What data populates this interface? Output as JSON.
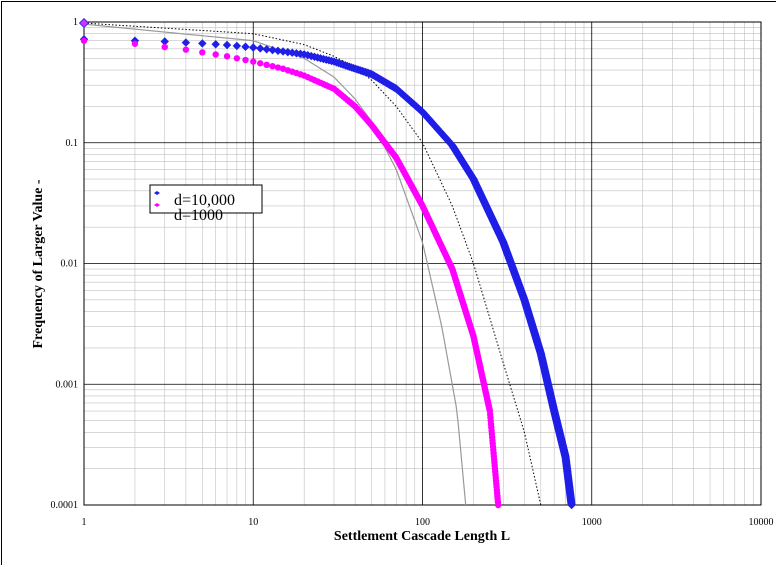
{
  "chart_data": {
    "type": "scatter",
    "title": "",
    "xlabel": "Settlement Cascade Length L",
    "ylabel": "Frequency of Larger Value    -",
    "x_scale": "log",
    "y_scale": "log",
    "xlim": [
      1,
      10000
    ],
    "ylim": [
      0.0001,
      1
    ],
    "x_tick_labels": [
      "1",
      "10",
      "100",
      "1000",
      "10000"
    ],
    "y_tick_labels": [
      "0.0001",
      "0.001",
      "0.01",
      "0.1",
      "1"
    ],
    "x_ticks": [
      1,
      10,
      100,
      1000,
      10000
    ],
    "y_ticks": [
      0.0001,
      0.001,
      0.01,
      0.1,
      1
    ],
    "grid": true,
    "legend_position": "center-left",
    "series": [
      {
        "name": "d=10,000",
        "color": "#1f1fe6",
        "marker": "diamond",
        "points": [
          [
            1,
            0.72
          ],
          [
            2,
            0.7
          ],
          [
            3,
            0.69
          ],
          [
            4,
            0.675
          ],
          [
            5,
            0.665
          ],
          [
            7,
            0.645
          ],
          [
            10,
            0.615
          ],
          [
            20,
            0.54
          ],
          [
            30,
            0.47
          ],
          [
            50,
            0.37
          ],
          [
            70,
            0.28
          ],
          [
            100,
            0.18
          ],
          [
            150,
            0.095
          ],
          [
            200,
            0.05
          ],
          [
            300,
            0.015
          ],
          [
            400,
            0.005
          ],
          [
            500,
            0.0018
          ],
          [
            600,
            0.0006
          ],
          [
            700,
            0.00025
          ],
          [
            760,
            0.0001
          ]
        ]
      },
      {
        "name": "d=1000",
        "color": "#ff00ff",
        "marker": "circle",
        "points": [
          [
            1,
            0.7
          ],
          [
            2,
            0.66
          ],
          [
            3,
            0.62
          ],
          [
            4,
            0.59
          ],
          [
            5,
            0.56
          ],
          [
            7,
            0.52
          ],
          [
            10,
            0.47
          ],
          [
            15,
            0.41
          ],
          [
            20,
            0.36
          ],
          [
            30,
            0.28
          ],
          [
            40,
            0.2
          ],
          [
            50,
            0.14
          ],
          [
            70,
            0.075
          ],
          [
            100,
            0.03
          ],
          [
            150,
            0.009
          ],
          [
            200,
            0.0025
          ],
          [
            250,
            0.0006
          ],
          [
            280,
            0.0001
          ]
        ]
      },
      {
        "name": "",
        "color": "#000000",
        "style": "dotted",
        "points": [
          [
            1,
            0.98
          ],
          [
            10,
            0.8
          ],
          [
            20,
            0.65
          ],
          [
            30,
            0.52
          ],
          [
            40,
            0.42
          ],
          [
            50,
            0.33
          ],
          [
            70,
            0.2
          ],
          [
            100,
            0.1
          ],
          [
            150,
            0.03
          ],
          [
            200,
            0.01
          ],
          [
            300,
            0.0015
          ],
          [
            400,
            0.0004
          ],
          [
            500,
            0.0001
          ]
        ]
      },
      {
        "name": "",
        "color": "#999999",
        "style": "solid",
        "points": [
          [
            1,
            0.96
          ],
          [
            10,
            0.7
          ],
          [
            20,
            0.5
          ],
          [
            30,
            0.35
          ],
          [
            40,
            0.23
          ],
          [
            50,
            0.15
          ],
          [
            70,
            0.06
          ],
          [
            100,
            0.015
          ],
          [
            130,
            0.003
          ],
          [
            160,
            0.0006
          ],
          [
            180,
            0.0001
          ]
        ]
      }
    ],
    "legend": {
      "entries": [
        "d=10,000",
        "d=1000"
      ]
    }
  }
}
